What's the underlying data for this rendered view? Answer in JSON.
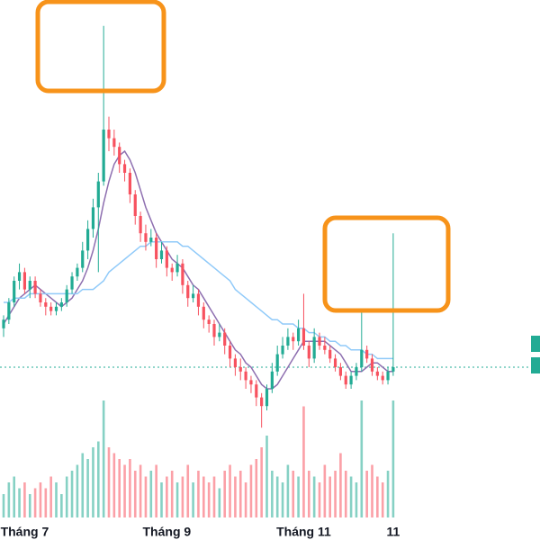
{
  "chart_data": {
    "type": "candlestick",
    "categories": [
      null,
      null,
      null,
      null,
      "Tháng 7",
      null,
      null,
      null,
      null,
      null,
      null,
      null,
      null,
      null,
      null,
      null,
      null,
      null,
      null,
      null,
      null,
      null,
      null,
      null,
      null,
      null,
      null,
      null,
      null,
      null,
      null,
      "Tháng 9",
      null,
      null,
      null,
      null,
      null,
      null,
      null,
      null,
      null,
      null,
      null,
      null,
      null,
      null,
      null,
      null,
      null,
      null,
      null,
      null,
      null,
      null,
      null,
      null,
      null,
      "Tháng 11",
      null,
      null,
      null,
      null,
      null,
      null,
      null,
      null,
      null,
      null,
      null,
      null,
      null,
      null,
      null,
      null,
      "11"
    ],
    "candles": [
      [
        24,
        27,
        22,
        26
      ],
      [
        26,
        31,
        25,
        30
      ],
      [
        30,
        36,
        29,
        35
      ],
      [
        35,
        39,
        33,
        37
      ],
      [
        37,
        38,
        32,
        33
      ],
      [
        33,
        36,
        31,
        35
      ],
      [
        35,
        36,
        31,
        32
      ],
      [
        32,
        33,
        29,
        30
      ],
      [
        30,
        31,
        27,
        29
      ],
      [
        29,
        30,
        27,
        28
      ],
      [
        28,
        30,
        27,
        29
      ],
      [
        29,
        31,
        28,
        30
      ],
      [
        30,
        34,
        29,
        33
      ],
      [
        33,
        37,
        32,
        36
      ],
      [
        36,
        39,
        35,
        38
      ],
      [
        38,
        44,
        37,
        42
      ],
      [
        42,
        49,
        40,
        47
      ],
      [
        47,
        54,
        45,
        52
      ],
      [
        52,
        60,
        37,
        58
      ],
      [
        58,
        94,
        57,
        70
      ],
      [
        70,
        73,
        65,
        68
      ],
      [
        68,
        70,
        64,
        66
      ],
      [
        66,
        67,
        60,
        62
      ],
      [
        62,
        63,
        58,
        60
      ],
      [
        60,
        61,
        53,
        55
      ],
      [
        55,
        56,
        48,
        50
      ],
      [
        50,
        51,
        44,
        46
      ],
      [
        46,
        48,
        42,
        44
      ],
      [
        44,
        47,
        43,
        45
      ],
      [
        45,
        46,
        38,
        40
      ],
      [
        40,
        44,
        39,
        42
      ],
      [
        42,
        43,
        36,
        38
      ],
      [
        38,
        39,
        35,
        37
      ],
      [
        37,
        41,
        36,
        39
      ],
      [
        39,
        40,
        32,
        34
      ],
      [
        34,
        35,
        29,
        31
      ],
      [
        31,
        34,
        30,
        32
      ],
      [
        32,
        33,
        27,
        29
      ],
      [
        29,
        30,
        24,
        26
      ],
      [
        26,
        27,
        23,
        25
      ],
      [
        25,
        26,
        20,
        22
      ],
      [
        22,
        25,
        21,
        23
      ],
      [
        23,
        24,
        18,
        20
      ],
      [
        20,
        21,
        15,
        17
      ],
      [
        17,
        18,
        13,
        15
      ],
      [
        15,
        17,
        12,
        14
      ],
      [
        14,
        15,
        10,
        12
      ],
      [
        12,
        13,
        9,
        11
      ],
      [
        11,
        12,
        6,
        8
      ],
      [
        8,
        9,
        1,
        6
      ],
      [
        6,
        11,
        5,
        10
      ],
      [
        10,
        16,
        9,
        14
      ],
      [
        14,
        20,
        13,
        18
      ],
      [
        18,
        22,
        17,
        20
      ],
      [
        20,
        24,
        19,
        22
      ],
      [
        22,
        23,
        19,
        21
      ],
      [
        21,
        26,
        20,
        24
      ],
      [
        24,
        32,
        19,
        20
      ],
      [
        20,
        21,
        15,
        17
      ],
      [
        17,
        24,
        16,
        22
      ],
      [
        22,
        23,
        19,
        20
      ],
      [
        20,
        22,
        18,
        19
      ],
      [
        19,
        20,
        16,
        17
      ],
      [
        17,
        18,
        14,
        15
      ],
      [
        15,
        16,
        12,
        13
      ],
      [
        13,
        14,
        10,
        11
      ],
      [
        11,
        14,
        10,
        13
      ],
      [
        13,
        16,
        12,
        15
      ],
      [
        15,
        28,
        14,
        19
      ],
      [
        19,
        20,
        16,
        17
      ],
      [
        17,
        18,
        13,
        14
      ],
      [
        14,
        15,
        12,
        13
      ],
      [
        13,
        14,
        11,
        12
      ],
      [
        12,
        15,
        11,
        14
      ],
      [
        14,
        46,
        13,
        15
      ]
    ],
    "up_color": "#22ab94",
    "down_color": "#f7525f",
    "ylim": [
      0,
      100
    ],
    "series": [
      {
        "color": "#8e6fb0",
        "values": [
          25,
          27,
          29,
          31,
          32,
          33,
          34,
          33,
          32,
          31,
          30,
          29,
          30,
          31,
          33,
          35,
          38,
          42,
          47,
          53,
          58,
          62,
          64,
          65,
          63,
          60,
          56,
          52,
          49,
          46,
          44,
          42,
          40,
          39,
          38,
          36,
          34,
          33,
          31,
          29,
          27,
          25,
          23,
          21,
          19,
          18,
          16,
          15,
          13,
          11,
          10,
          10,
          11,
          13,
          15,
          17,
          19,
          21,
          21,
          21,
          21,
          21,
          20,
          19,
          18,
          16,
          14,
          14,
          14,
          15,
          16,
          16,
          15,
          14,
          14
        ]
      },
      {
        "color": "#90caf9",
        "values": [
          30,
          30,
          31,
          31,
          31,
          32,
          32,
          32,
          32,
          32,
          32,
          32,
          32,
          32,
          32,
          33,
          33,
          33,
          34,
          35,
          37,
          38,
          39,
          40,
          41,
          42,
          43,
          43,
          44,
          44,
          44,
          44,
          44,
          44,
          43,
          43,
          42,
          41,
          40,
          39,
          38,
          37,
          36,
          35,
          33,
          32,
          31,
          30,
          29,
          28,
          27,
          26,
          26,
          25,
          25,
          25,
          24,
          24,
          23,
          23,
          22,
          22,
          21,
          21,
          20,
          20,
          19,
          19,
          19,
          18,
          18,
          17,
          17,
          17,
          17
        ]
      }
    ],
    "volume": [
      20,
      30,
      35,
      25,
      30,
      20,
      25,
      30,
      25,
      35,
      30,
      20,
      35,
      40,
      45,
      55,
      50,
      60,
      65,
      100,
      60,
      55,
      50,
      45,
      50,
      40,
      45,
      35,
      40,
      45,
      30,
      35,
      40,
      30,
      35,
      45,
      30,
      40,
      35,
      30,
      35,
      25,
      40,
      45,
      35,
      40,
      30,
      45,
      50,
      60,
      70,
      40,
      35,
      30,
      45,
      40,
      35,
      95,
      40,
      35,
      30,
      45,
      35,
      40,
      55,
      40,
      35,
      30,
      100,
      40,
      45,
      35,
      30,
      40,
      100
    ],
    "volume_lim": [
      0,
      100
    ],
    "last_price": 15
  }
}
